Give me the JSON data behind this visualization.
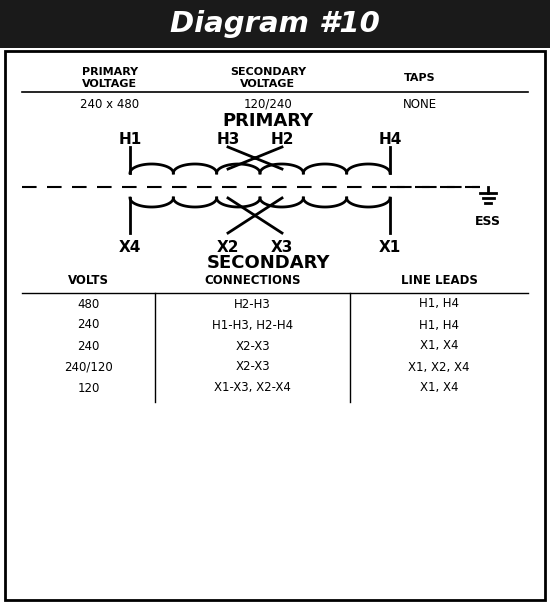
{
  "title": "Diagram #10",
  "title_bg": "#1a1a1a",
  "title_color": "#ffffff",
  "bg_color": "#ffffff",
  "border_color": "#000000",
  "header_cols": [
    "PRIMARY\nVOLTAGE",
    "SECONDARY\nVOLTAGE",
    "TAPS"
  ],
  "header_vals": [
    "240 x 480",
    "120/240",
    "NONE"
  ],
  "primary_label": "PRIMARY",
  "secondary_label": "SECONDARY",
  "table_headers": [
    "VOLTS",
    "CONNECTIONS",
    "LINE LEADS"
  ],
  "table_rows": [
    [
      "480",
      "H2-H3",
      "H1, H4"
    ],
    [
      "240",
      "H1-H3, H2-H4",
      "H1, H4"
    ],
    [
      "240",
      "X2-X3",
      "X1, X4"
    ],
    [
      "240/120",
      "X2-X3",
      "X1, X2, X4"
    ],
    [
      "120",
      "X1-X3, X2-X4",
      "X1, X4"
    ]
  ],
  "ess_label": "ESS",
  "H1x": 130,
  "H3x": 228,
  "H2x": 282,
  "H4x": 390,
  "X4x": 130,
  "X2x": 228,
  "X3x": 282,
  "X1x": 390
}
